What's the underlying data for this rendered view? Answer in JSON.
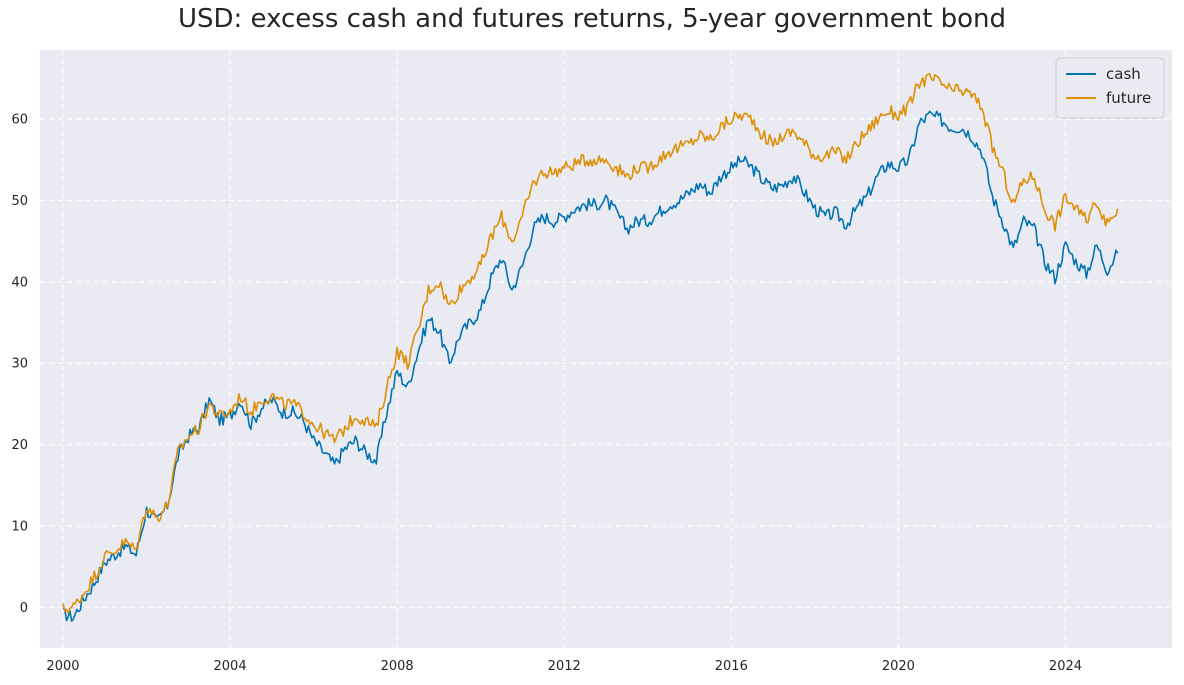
{
  "chart_data": {
    "type": "line",
    "title": "USD: excess cash and futures returns, 5-year government bond",
    "xlabel": "",
    "ylabel": "",
    "xlim": [
      1999.45,
      2026.55
    ],
    "ylim": [
      -5,
      68.5
    ],
    "xticks": [
      2000,
      2004,
      2008,
      2012,
      2016,
      2020,
      2024
    ],
    "xtick_labels": [
      "2000",
      "2004",
      "2008",
      "2012",
      "2016",
      "2020",
      "2024"
    ],
    "yticks": [
      0,
      10,
      20,
      30,
      40,
      50,
      60
    ],
    "ytick_labels": [
      "0",
      "10",
      "20",
      "30",
      "40",
      "50",
      "60"
    ],
    "grid": true,
    "legend_position": "top-right",
    "background": "#EAEAF2",
    "series": [
      {
        "name": "cash",
        "color": "#0173B2",
        "x": [
          2000.0,
          2000.25,
          2000.5,
          2000.75,
          2001.0,
          2001.25,
          2001.5,
          2001.75,
          2002.0,
          2002.25,
          2002.5,
          2002.75,
          2003.0,
          2003.25,
          2003.5,
          2003.75,
          2004.0,
          2004.25,
          2004.5,
          2004.75,
          2005.0,
          2005.25,
          2005.5,
          2005.75,
          2006.0,
          2006.25,
          2006.5,
          2006.75,
          2007.0,
          2007.25,
          2007.5,
          2007.75,
          2008.0,
          2008.25,
          2008.5,
          2008.75,
          2009.0,
          2009.25,
          2009.5,
          2009.75,
          2010.0,
          2010.25,
          2010.5,
          2010.75,
          2011.0,
          2011.25,
          2011.5,
          2011.75,
          2012.0,
          2012.25,
          2012.5,
          2012.75,
          2013.0,
          2013.25,
          2013.5,
          2013.75,
          2014.0,
          2014.25,
          2014.5,
          2014.75,
          2015.0,
          2015.25,
          2015.5,
          2015.75,
          2016.0,
          2016.25,
          2016.5,
          2016.75,
          2017.0,
          2017.25,
          2017.5,
          2017.75,
          2018.0,
          2018.25,
          2018.5,
          2018.75,
          2019.0,
          2019.25,
          2019.5,
          2019.75,
          2020.0,
          2020.25,
          2020.5,
          2020.75,
          2021.0,
          2021.25,
          2021.5,
          2021.75,
          2022.0,
          2022.25,
          2022.5,
          2022.75,
          2023.0,
          2023.25,
          2023.5,
          2023.75,
          2024.0,
          2024.25,
          2024.5,
          2024.75,
          2025.0,
          2025.25
        ],
        "y": [
          -0.8,
          -1.2,
          1.0,
          3.0,
          5.5,
          6.5,
          7.5,
          6.5,
          12.0,
          10.5,
          12.5,
          18.5,
          21.0,
          22.0,
          25.5,
          23.0,
          23.5,
          25.5,
          22.5,
          24.5,
          25.5,
          24.0,
          24.0,
          23.0,
          20.5,
          19.0,
          17.5,
          19.5,
          20.5,
          19.0,
          18.0,
          24.0,
          29.0,
          27.0,
          31.5,
          35.5,
          34.0,
          30.0,
          33.5,
          35.0,
          36.5,
          40.5,
          43.0,
          39.0,
          42.0,
          46.5,
          48.0,
          47.5,
          48.0,
          49.0,
          49.5,
          49.5,
          50.0,
          48.5,
          46.5,
          47.5,
          47.5,
          48.5,
          49.5,
          50.0,
          51.0,
          52.0,
          51.0,
          53.0,
          54.0,
          55.0,
          54.0,
          52.5,
          51.5,
          52.0,
          53.0,
          51.0,
          49.0,
          48.0,
          48.5,
          47.0,
          49.0,
          50.5,
          53.0,
          54.5,
          54.0,
          55.0,
          59.5,
          60.5,
          60.0,
          59.0,
          59.0,
          58.0,
          56.0,
          50.5,
          47.5,
          44.0,
          47.5,
          46.5,
          42.5,
          40.5,
          44.5,
          42.5,
          41.0,
          44.5,
          41.5,
          43.5
        ]
      },
      {
        "name": "future",
        "color": "#DE8F05",
        "x": [
          2000.0,
          2000.25,
          2000.5,
          2000.75,
          2001.0,
          2001.25,
          2001.5,
          2001.75,
          2002.0,
          2002.25,
          2002.5,
          2002.75,
          2003.0,
          2003.25,
          2003.5,
          2003.75,
          2004.0,
          2004.25,
          2004.5,
          2004.75,
          2005.0,
          2005.25,
          2005.5,
          2005.75,
          2006.0,
          2006.25,
          2006.5,
          2006.75,
          2007.0,
          2007.25,
          2007.5,
          2007.75,
          2008.0,
          2008.25,
          2008.5,
          2008.75,
          2009.0,
          2009.25,
          2009.5,
          2009.75,
          2010.0,
          2010.25,
          2010.5,
          2010.75,
          2011.0,
          2011.25,
          2011.5,
          2011.75,
          2012.0,
          2012.25,
          2012.5,
          2012.75,
          2013.0,
          2013.25,
          2013.5,
          2013.75,
          2014.0,
          2014.25,
          2014.5,
          2014.75,
          2015.0,
          2015.25,
          2015.5,
          2015.75,
          2016.0,
          2016.25,
          2016.5,
          2016.75,
          2017.0,
          2017.25,
          2017.5,
          2017.75,
          2018.0,
          2018.25,
          2018.5,
          2018.75,
          2019.0,
          2019.25,
          2019.5,
          2019.75,
          2020.0,
          2020.25,
          2020.5,
          2020.75,
          2021.0,
          2021.25,
          2021.5,
          2021.75,
          2022.0,
          2022.25,
          2022.5,
          2022.75,
          2023.0,
          2023.25,
          2023.5,
          2023.75,
          2024.0,
          2024.25,
          2024.5,
          2024.75,
          2025.0,
          2025.25
        ],
        "y": [
          -0.2,
          0.0,
          1.8,
          3.8,
          6.2,
          7.0,
          8.0,
          7.0,
          12.5,
          11.0,
          12.5,
          19.0,
          21.0,
          22.0,
          25.0,
          23.5,
          24.0,
          26.0,
          24.0,
          25.5,
          26.0,
          25.0,
          25.0,
          24.0,
          22.5,
          21.5,
          20.5,
          22.0,
          23.5,
          23.0,
          22.0,
          27.0,
          31.5,
          30.0,
          34.0,
          39.0,
          40.0,
          37.0,
          39.0,
          40.5,
          42.0,
          45.5,
          48.0,
          45.0,
          48.0,
          52.0,
          53.5,
          53.5,
          54.0,
          54.5,
          55.0,
          55.0,
          55.0,
          54.0,
          53.0,
          54.0,
          54.0,
          55.0,
          56.0,
          56.5,
          57.0,
          58.0,
          57.5,
          59.0,
          60.0,
          60.5,
          60.0,
          58.0,
          57.0,
          58.0,
          58.5,
          57.0,
          55.5,
          55.5,
          56.0,
          55.0,
          57.0,
          58.5,
          60.0,
          61.0,
          60.5,
          61.5,
          64.5,
          65.0,
          64.5,
          63.5,
          63.5,
          63.0,
          61.5,
          56.5,
          53.5,
          49.5,
          52.5,
          53.0,
          49.0,
          47.0,
          50.5,
          49.0,
          47.5,
          50.0,
          47.0,
          49.0
        ]
      }
    ]
  }
}
